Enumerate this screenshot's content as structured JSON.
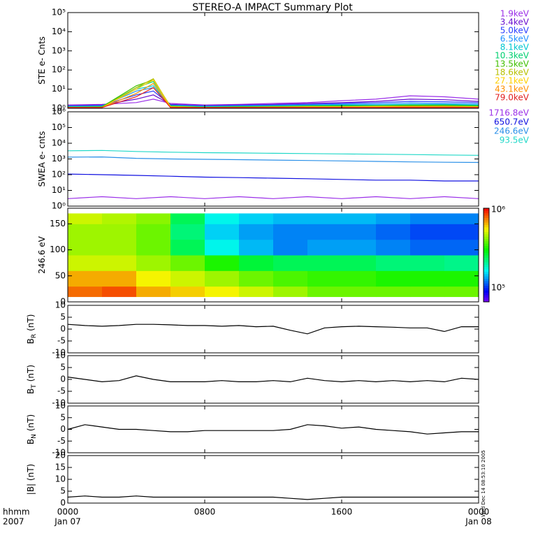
{
  "title": "STEREO-A IMPACT Summary Plot",
  "x_axis": {
    "xlim": [
      0,
      24
    ],
    "xticks": [
      {
        "value": 0,
        "label": "0000"
      },
      {
        "value": 8,
        "label": "0800"
      },
      {
        "value": 16,
        "label": "1600"
      },
      {
        "value": 24,
        "label": "0000"
      }
    ],
    "dates": [
      "Jan 07",
      null,
      null,
      "Jan 08"
    ],
    "corner_labels": [
      "hhmm",
      "2007"
    ]
  },
  "stamp": "Wed Dec 14 08:53:10 2005",
  "chart_data": [
    {
      "type": "line",
      "ylabel": "STE e- Cnts",
      "log": true,
      "ylim": [
        1,
        100000
      ],
      "yticks": [
        {
          "value": 1,
          "label": "10⁰"
        },
        {
          "value": 10,
          "label": "10¹"
        },
        {
          "value": 100,
          "label": "10²"
        },
        {
          "value": 1000,
          "label": "10³"
        },
        {
          "value": 10000,
          "label": "10⁴"
        },
        {
          "value": 100000,
          "label": "10⁵"
        }
      ],
      "x": [
        0,
        2,
        4,
        5,
        6,
        8,
        10,
        12,
        14,
        16,
        18,
        20,
        22,
        24
      ],
      "series": [
        {
          "name": "1.9keV",
          "color": "#9b30e8",
          "values": [
            1.5,
            1.6,
            2,
            3,
            1.8,
            1.5,
            1.6,
            1.8,
            2,
            2.5,
            3,
            4.5,
            4,
            3
          ]
        },
        {
          "name": "3.4keV",
          "color": "#6a10d0",
          "values": [
            1.4,
            1.5,
            3,
            5,
            1.6,
            1.4,
            1.5,
            1.6,
            1.8,
            2,
            2.3,
            3,
            2.8,
            2.3
          ]
        },
        {
          "name": "5.0keV",
          "color": "#2a40ff",
          "values": [
            1.3,
            1.4,
            5,
            8,
            1.5,
            1.3,
            1.4,
            1.5,
            1.6,
            1.8,
            2,
            2.3,
            2.2,
            2
          ]
        },
        {
          "name": "6.5keV",
          "color": "#1e90ff",
          "values": [
            1.3,
            1.3,
            8,
            12,
            1.4,
            1.3,
            1.3,
            1.4,
            1.5,
            1.6,
            1.7,
            1.9,
            1.8,
            1.7
          ]
        },
        {
          "name": "8.1keV",
          "color": "#00c8d0",
          "values": [
            1.2,
            1.3,
            10,
            15,
            1.4,
            1.2,
            1.3,
            1.3,
            1.4,
            1.5,
            1.5,
            1.6,
            1.6,
            1.5
          ]
        },
        {
          "name": "10.3keV",
          "color": "#00d070",
          "values": [
            1.2,
            1.2,
            12,
            25,
            1.3,
            1.2,
            1.2,
            1.3,
            1.3,
            1.4,
            1.4,
            1.5,
            1.5,
            1.4
          ]
        },
        {
          "name": "13.5keV",
          "color": "#40c000",
          "values": [
            1.1,
            1.2,
            15,
            30,
            1.3,
            1.1,
            1.2,
            1.2,
            1.3,
            1.3,
            1.3,
            1.4,
            1.4,
            1.3
          ]
        },
        {
          "name": "18.6keV",
          "color": "#b8c000",
          "values": [
            1.1,
            1.1,
            12,
            35,
            1.2,
            1.1,
            1.1,
            1.2,
            1.2,
            1.2,
            1.3,
            1.3,
            1.3,
            1.2
          ]
        },
        {
          "name": "27.1keV",
          "color": "#ffd000",
          "values": [
            1.1,
            1.1,
            10,
            30,
            1.2,
            1.1,
            1.1,
            1.1,
            1.2,
            1.2,
            1.2,
            1.2,
            1.2,
            1.2
          ]
        },
        {
          "name": "43.1keV",
          "color": "#ff9000",
          "values": [
            1.1,
            1.1,
            6,
            20,
            1.1,
            1.1,
            1.1,
            1.1,
            1.1,
            1.1,
            1.1,
            1.2,
            1.2,
            1.1
          ]
        },
        {
          "name": "79.0keV",
          "color": "#e02020",
          "values": [
            1.1,
            1.1,
            4,
            12,
            1.1,
            1.1,
            1.1,
            1.1,
            1.1,
            1.1,
            1.1,
            1.1,
            1.1,
            1.1
          ]
        }
      ]
    },
    {
      "type": "line",
      "ylabel": "SWEA e- cnts",
      "log": true,
      "ylim": [
        1,
        1000000
      ],
      "yticks": [
        {
          "value": 1,
          "label": "10⁰"
        },
        {
          "value": 10,
          "label": "10¹"
        },
        {
          "value": 100,
          "label": "10²"
        },
        {
          "value": 1000,
          "label": "10³"
        },
        {
          "value": 10000,
          "label": "10⁴"
        },
        {
          "value": 100000,
          "label": "10⁵"
        },
        {
          "value": 1000000,
          "label": "10⁶"
        }
      ],
      "x": [
        0,
        2,
        4,
        6,
        8,
        10,
        12,
        14,
        16,
        18,
        20,
        22,
        24
      ],
      "series": [
        {
          "name": "1716.8eV",
          "color": "#9b30e8",
          "values": [
            3,
            4,
            3,
            4,
            3,
            4,
            3,
            4,
            3,
            4,
            3,
            4,
            3
          ]
        },
        {
          "name": "650.7eV",
          "color": "#1010e0",
          "values": [
            110,
            100,
            90,
            80,
            70,
            65,
            60,
            55,
            50,
            45,
            45,
            40,
            40
          ]
        },
        {
          "name": "246.6eV",
          "color": "#2a90e8",
          "values": [
            1300,
            1350,
            1100,
            1000,
            950,
            900,
            850,
            800,
            750,
            700,
            650,
            620,
            600
          ]
        },
        {
          "name": "93.5eV",
          "color": "#20d8c8",
          "values": [
            3300,
            3500,
            3000,
            2700,
            2500,
            2400,
            2300,
            2200,
            2100,
            2000,
            1900,
            1800,
            1700
          ]
        }
      ]
    },
    {
      "type": "heatmap",
      "ylabel": "246.6 eV",
      "ylim": [
        0,
        180
      ],
      "yticks": [
        0,
        50,
        100,
        150
      ],
      "x": [
        0,
        2,
        4,
        6,
        8,
        10,
        12,
        14,
        16,
        18,
        20,
        22,
        24
      ],
      "y": [
        10,
        30,
        60,
        90,
        120,
        150,
        170
      ],
      "clim": [
        100000,
        1000000
      ],
      "clim_labels": [
        "10⁵",
        "10⁶"
      ],
      "values": [
        [
          800000,
          850000,
          700000,
          650000,
          600000,
          550000,
          500000,
          450000,
          450000,
          450000,
          450000,
          450000
        ],
        [
          700000,
          700000,
          600000,
          550000,
          500000,
          450000,
          420000,
          400000,
          400000,
          380000,
          380000,
          380000
        ],
        [
          550000,
          550000,
          500000,
          450000,
          380000,
          320000,
          300000,
          300000,
          300000,
          280000,
          280000,
          270000
        ],
        [
          500000,
          500000,
          450000,
          300000,
          220000,
          190000,
          170000,
          180000,
          180000,
          170000,
          160000,
          160000
        ],
        [
          500000,
          500000,
          450000,
          280000,
          200000,
          180000,
          170000,
          170000,
          170000,
          160000,
          150000,
          150000
        ],
        [
          550000,
          520000,
          480000,
          300000,
          220000,
          200000,
          190000,
          190000,
          190000,
          180000,
          170000,
          170000
        ]
      ]
    },
    {
      "type": "line",
      "ylabel": "B",
      "ylabel_sub": "R",
      "ylabel_unit": "(nT)",
      "ylim": [
        -10,
        10
      ],
      "yticks": [
        -10,
        -5,
        0,
        5,
        10
      ],
      "x": [
        0,
        1,
        2,
        3,
        4,
        5,
        6,
        7,
        8,
        9,
        10,
        11,
        12,
        13,
        14,
        15,
        16,
        17,
        18,
        19,
        20,
        21,
        22,
        23,
        24
      ],
      "series": [
        {
          "color": "#000000",
          "values": [
            2,
            1.5,
            1.2,
            1.5,
            2,
            2,
            1.8,
            1.5,
            1.5,
            1.2,
            1.5,
            1,
            1.2,
            -0.5,
            -2,
            0.5,
            1,
            1.2,
            1,
            0.8,
            0.5,
            0.5,
            -1,
            1,
            1
          ]
        }
      ]
    },
    {
      "type": "line",
      "ylabel": "B",
      "ylabel_sub": "T",
      "ylabel_unit": "(nT)",
      "ylim": [
        -10,
        10
      ],
      "yticks": [
        -10,
        -5,
        0,
        5,
        10
      ],
      "x": [
        0,
        1,
        2,
        3,
        4,
        5,
        6,
        7,
        8,
        9,
        10,
        11,
        12,
        13,
        14,
        15,
        16,
        17,
        18,
        19,
        20,
        21,
        22,
        23,
        24
      ],
      "series": [
        {
          "color": "#000000",
          "values": [
            1,
            0,
            -1,
            -0.5,
            1.5,
            0,
            -1,
            -1,
            -1,
            -0.5,
            -1,
            -1,
            -0.5,
            -1,
            0.5,
            -0.5,
            -1,
            -0.5,
            -1,
            -0.5,
            -1,
            -0.5,
            -1,
            0.5,
            0
          ]
        }
      ]
    },
    {
      "type": "line",
      "ylabel": "B",
      "ylabel_sub": "N",
      "ylabel_unit": "(nT)",
      "ylim": [
        -10,
        10
      ],
      "yticks": [
        -10,
        -5,
        0,
        5,
        10
      ],
      "x": [
        0,
        1,
        2,
        3,
        4,
        5,
        6,
        7,
        8,
        9,
        10,
        11,
        12,
        13,
        14,
        15,
        16,
        17,
        18,
        19,
        20,
        21,
        22,
        23,
        24
      ],
      "series": [
        {
          "color": "#000000",
          "values": [
            0,
            2,
            1,
            0,
            0,
            -0.5,
            -1,
            -1,
            -0.5,
            -0.5,
            -0.5,
            -0.5,
            -0.5,
            0,
            2,
            1.5,
            0.5,
            1,
            0,
            -0.5,
            -1,
            -2,
            -1.5,
            -1,
            -1
          ]
        }
      ]
    },
    {
      "type": "line",
      "ylabel": "|B| (nT)",
      "ylim": [
        0,
        20
      ],
      "yticks": [
        0,
        5,
        10,
        15,
        20
      ],
      "x": [
        0,
        1,
        2,
        3,
        4,
        5,
        6,
        7,
        8,
        9,
        10,
        11,
        12,
        13,
        14,
        15,
        16,
        17,
        18,
        19,
        20,
        21,
        22,
        23,
        24
      ],
      "series": [
        {
          "color": "#000000",
          "values": [
            2.5,
            3,
            2.5,
            2.5,
            3,
            2.5,
            2.5,
            2.5,
            2.5,
            2.5,
            2.5,
            2.5,
            2.5,
            2,
            1.5,
            2,
            2.5,
            2.5,
            2.5,
            2.5,
            2.5,
            2.5,
            2.5,
            2.5,
            2.5
          ]
        }
      ]
    }
  ]
}
